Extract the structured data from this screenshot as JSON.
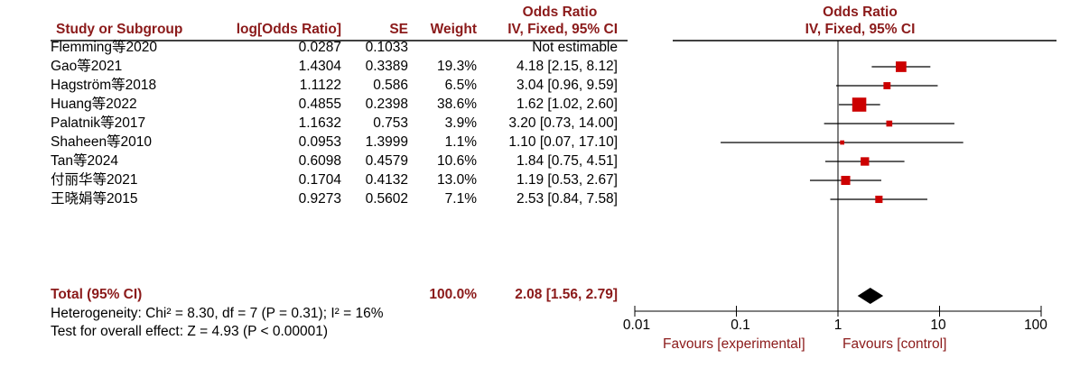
{
  "header": {
    "study_col": "Study or Subgroup",
    "log_or_col": "log[Odds Ratio]",
    "se_col": "SE",
    "weight_col": "Weight",
    "or_title": "Odds Ratio",
    "or_method": "IV, Fixed, 95% CI",
    "plot_title": "Odds Ratio",
    "plot_method": "IV, Fixed, 95% CI"
  },
  "rows": [
    {
      "study": "Flemming等2020",
      "log_or": "0.0287",
      "se": "0.1033",
      "weight": "",
      "ci_text": "Not estimable"
    },
    {
      "study": "Gao等2021",
      "log_or": "1.4304",
      "se": "0.3389",
      "weight": "19.3%",
      "ci_text": "4.18 [2.15, 8.12]"
    },
    {
      "study": "Hagström等2018",
      "log_or": "1.1122",
      "se": "0.586",
      "weight": "6.5%",
      "ci_text": "3.04 [0.96, 9.59]"
    },
    {
      "study": "Huang等2022",
      "log_or": "0.4855",
      "se": "0.2398",
      "weight": "38.6%",
      "ci_text": "1.62 [1.02, 2.60]"
    },
    {
      "study": "Palatnik等2017",
      "log_or": "1.1632",
      "se": "0.753",
      "weight": "3.9%",
      "ci_text": "3.20 [0.73, 14.00]"
    },
    {
      "study": "Shaheen等2010",
      "log_or": "0.0953",
      "se": "1.3999",
      "weight": "1.1%",
      "ci_text": "1.10 [0.07, 17.10]"
    },
    {
      "study": "Tan等2024",
      "log_or": "0.6098",
      "se": "0.4579",
      "weight": "10.6%",
      "ci_text": "1.84 [0.75, 4.51]"
    },
    {
      "study": "付丽华等2021",
      "log_or": "0.1704",
      "se": "0.4132",
      "weight": "13.0%",
      "ci_text": "1.19 [0.53, 2.67]"
    },
    {
      "study": "王晓娟等2015",
      "log_or": "0.9273",
      "se": "0.5602",
      "weight": "7.1%",
      "ci_text": "2.53 [0.84, 7.58]"
    }
  ],
  "total": {
    "label": "Total (95% CI)",
    "weight": "100.0%",
    "ci_text": "2.08 [1.56, 2.79]"
  },
  "heterogeneity": "Heterogeneity: Chi² = 8.30, df = 7 (P = 0.31); I² = 16%",
  "overall_effect": "Test for overall effect: Z = 4.93 (P < 0.00001)",
  "axis": {
    "ticks": [
      "0.01",
      "0.1",
      "1",
      "10",
      "100"
    ],
    "favours_left": "Favours [experimental]",
    "favours_right": "Favours [control]"
  },
  "colors": {
    "accent": "#8b1a1a",
    "marker": "#cc0000",
    "line": "#000000"
  },
  "chart_data": {
    "type": "forest",
    "scale": "log",
    "xlim": [
      0.01,
      100
    ],
    "null_line": 1,
    "points": [
      {
        "label": "Flemming等2020",
        "or": null,
        "lo": null,
        "hi": null,
        "weight": null
      },
      {
        "label": "Gao等2021",
        "or": 4.18,
        "lo": 2.15,
        "hi": 8.12,
        "weight": 19.3
      },
      {
        "label": "Hagström等2018",
        "or": 3.04,
        "lo": 0.96,
        "hi": 9.59,
        "weight": 6.5
      },
      {
        "label": "Huang等2022",
        "or": 1.62,
        "lo": 1.02,
        "hi": 2.6,
        "weight": 38.6
      },
      {
        "label": "Palatnik等2017",
        "or": 3.2,
        "lo": 0.73,
        "hi": 14.0,
        "weight": 3.9
      },
      {
        "label": "Shaheen等2010",
        "or": 1.1,
        "lo": 0.07,
        "hi": 17.1,
        "weight": 1.1
      },
      {
        "label": "Tan等2024",
        "or": 1.84,
        "lo": 0.75,
        "hi": 4.51,
        "weight": 10.6
      },
      {
        "label": "付丽华等2021",
        "or": 1.19,
        "lo": 0.53,
        "hi": 2.67,
        "weight": 13.0
      },
      {
        "label": "王晓娟等2015",
        "or": 2.53,
        "lo": 0.84,
        "hi": 7.58,
        "weight": 7.1
      }
    ],
    "pooled": {
      "label": "Total (95% CI)",
      "or": 2.08,
      "lo": 1.56,
      "hi": 2.79
    }
  }
}
